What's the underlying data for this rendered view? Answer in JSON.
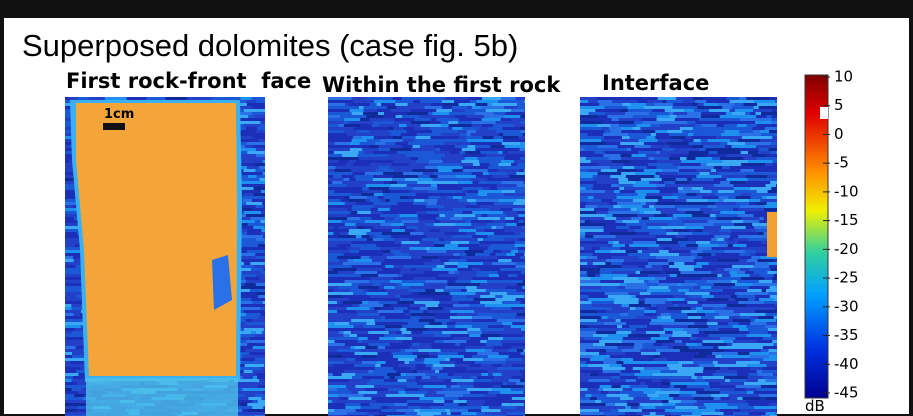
{
  "title": "Superposed dolomites (case fig. 5b)",
  "panels": [
    {
      "label": "First rock-front  face",
      "scale_label": "1cm"
    },
    {
      "label": "Within the first rock"
    },
    {
      "label": "Interface"
    }
  ],
  "colorbar": {
    "ticks": [
      10,
      5,
      0,
      -5,
      -10,
      -15,
      -20,
      -25,
      -30,
      -35,
      -40,
      -45
    ],
    "unit": "dB"
  }
}
